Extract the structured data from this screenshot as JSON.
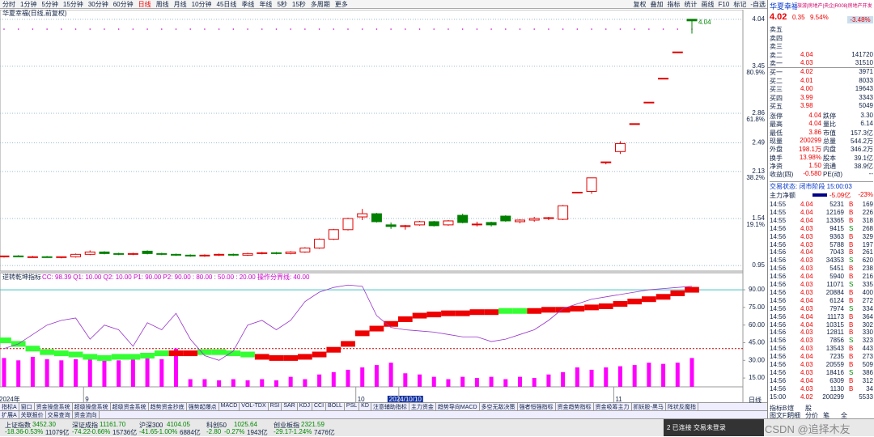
{
  "toolbar": {
    "periods": [
      "分时",
      "1分钟",
      "5分钟",
      "15分钟",
      "30分钟",
      "60分钟",
      "日线",
      "周线",
      "月线",
      "10分钟",
      "45日线",
      "季线",
      "年线",
      "5秒",
      "15秒",
      "多周期",
      "更多"
    ],
    "active_period": "日线",
    "tools": [
      "复权",
      "叠加",
      "指标",
      "统计",
      "画线",
      "F10",
      "标记",
      "-自选"
    ]
  },
  "chart_data": [
    {
      "type": "candlestick",
      "title": "华夏幸福(日线,前复权)",
      "ylim": [
        0.88,
        4.16
      ],
      "yticks": [
        4.04,
        3.45,
        2.86,
        2.49,
        2.13,
        1.54,
        0.95
      ],
      "ratio_ticks": [
        {
          "value": 3.45,
          "label": "80.9%"
        },
        {
          "value": 2.86,
          "label": "61.8%"
        },
        {
          "value": 2.13,
          "label": "38.2%"
        },
        {
          "value": 1.54,
          "label": "19.1%"
        }
      ],
      "high_label": 4.04,
      "up_color": "#e00000",
      "down_color": "#008000",
      "categories": [
        "2024年",
        null,
        null,
        null,
        null,
        null,
        "9",
        null,
        null,
        null,
        null,
        null,
        null,
        null,
        null,
        null,
        null,
        null,
        null,
        null,
        null,
        null,
        null,
        null,
        null,
        "10",
        null,
        null,
        "2024/10/10",
        null,
        null,
        null,
        null,
        null,
        null,
        null,
        null,
        null,
        null,
        null,
        null,
        null,
        null,
        "11",
        null,
        null,
        null,
        null,
        null
      ],
      "candles": [
        [
          1.06,
          1.07,
          1.05,
          1.07
        ],
        [
          1.07,
          1.08,
          1.06,
          1.06
        ],
        [
          1.06,
          1.07,
          1.05,
          1.06
        ],
        [
          1.06,
          1.07,
          1.05,
          1.05
        ],
        [
          1.05,
          1.06,
          1.04,
          1.06
        ],
        [
          1.06,
          1.1,
          1.05,
          1.09
        ],
        [
          1.09,
          1.14,
          1.08,
          1.12
        ],
        [
          1.12,
          1.13,
          1.09,
          1.1
        ],
        [
          1.1,
          1.11,
          1.08,
          1.09
        ],
        [
          1.09,
          1.11,
          1.08,
          1.1
        ],
        [
          1.13,
          1.14,
          1.09,
          1.1
        ],
        [
          1.1,
          1.11,
          1.08,
          1.09
        ],
        [
          1.09,
          1.1,
          1.07,
          1.08
        ],
        [
          1.08,
          1.09,
          1.06,
          1.07
        ],
        [
          1.07,
          1.09,
          1.06,
          1.08
        ],
        [
          1.08,
          1.1,
          1.07,
          1.09
        ],
        [
          1.09,
          1.1,
          1.07,
          1.08
        ],
        [
          1.08,
          1.11,
          1.07,
          1.1
        ],
        [
          1.1,
          1.12,
          1.09,
          1.11
        ],
        [
          1.11,
          1.12,
          1.09,
          1.1
        ],
        [
          1.1,
          1.13,
          1.09,
          1.12
        ],
        [
          1.12,
          1.18,
          1.11,
          1.17
        ],
        [
          1.17,
          1.29,
          1.16,
          1.28
        ],
        [
          1.28,
          1.41,
          1.27,
          1.4
        ],
        [
          1.4,
          1.55,
          1.39,
          1.54
        ],
        [
          1.56,
          1.66,
          1.52,
          1.6
        ],
        [
          1.6,
          1.61,
          1.49,
          1.5
        ],
        [
          1.46,
          1.49,
          1.41,
          1.44
        ],
        [
          1.44,
          1.46,
          1.4,
          1.45
        ],
        [
          1.46,
          1.51,
          1.45,
          1.5
        ],
        [
          1.5,
          1.51,
          1.44,
          1.45
        ],
        [
          1.46,
          1.52,
          1.45,
          1.51
        ],
        [
          1.58,
          1.6,
          1.48,
          1.49
        ],
        [
          1.46,
          1.5,
          1.44,
          1.47
        ],
        [
          1.49,
          1.5,
          1.44,
          1.46
        ],
        [
          1.57,
          1.58,
          1.5,
          1.51
        ],
        [
          1.5,
          1.53,
          1.48,
          1.52
        ],
        [
          1.52,
          1.56,
          1.5,
          1.54
        ],
        [
          1.54,
          1.56,
          1.52,
          1.55
        ],
        [
          1.53,
          1.71,
          1.52,
          1.7
        ],
        [
          1.87,
          1.87,
          1.87,
          1.87
        ],
        [
          1.88,
          2.05,
          1.85,
          2.05
        ],
        [
          2.25,
          2.25,
          2.22,
          2.25
        ],
        [
          2.38,
          2.51,
          2.35,
          2.48
        ],
        [
          2.73,
          2.73,
          2.72,
          2.73
        ],
        [
          3.0,
          3.0,
          3.0,
          3.0
        ],
        [
          3.3,
          3.3,
          3.3,
          3.3
        ],
        [
          3.63,
          3.63,
          3.63,
          3.63
        ],
        [
          4.04,
          4.04,
          3.86,
          4.02
        ]
      ]
    },
    {
      "type": "indicator",
      "title": "逆转乾坤指标",
      "params": "CC: 98.39  Q1: 10.00  Q2: 10.00  P1: 90.00  P2: 90.00  : 80.00  : 50.00  : 20.00  操作分界线: 40.00",
      "ylim": [
        7.5,
        104.5
      ],
      "yticks": [
        {
          "value": 90,
          "label": "90.00"
        },
        {
          "value": 75,
          "label": "75.00"
        },
        {
          "value": 60,
          "label": "60.00"
        },
        {
          "value": 45,
          "label": "45.00"
        },
        {
          "value": 30,
          "label": "30.00"
        },
        {
          "value": 15,
          "label": "15.00"
        }
      ],
      "reference_lines": [
        {
          "value": 90,
          "color": "#40c0c0",
          "style": "solid"
        },
        {
          "value": 40,
          "color": "#c00000",
          "style": "dashed"
        }
      ],
      "bar_color": "#ff00ff",
      "line_color": "#9933cc",
      "bars": [
        32,
        30,
        33,
        31,
        30,
        31,
        32,
        33,
        30,
        31,
        32,
        31,
        40,
        14,
        14,
        13,
        14,
        13,
        14,
        13,
        16,
        14,
        18,
        20,
        22,
        24,
        26,
        28,
        19,
        18,
        16,
        14,
        16,
        15,
        16,
        14,
        16,
        15,
        18,
        20,
        24,
        22,
        24,
        25,
        26,
        28,
        27,
        28,
        32
      ],
      "band": [
        47,
        44,
        40,
        37,
        36,
        35,
        33,
        32,
        33,
        33,
        34,
        36,
        36,
        36,
        37,
        37,
        36,
        35,
        33,
        32,
        32,
        33,
        35,
        39,
        44,
        53,
        57,
        61,
        65,
        68,
        69,
        70,
        70,
        71,
        71,
        72,
        72,
        72,
        73,
        73,
        74,
        75,
        76,
        78,
        80,
        82,
        84,
        87,
        90
      ],
      "band_colors": [
        "#33ff33",
        "#33ff33",
        "#33ff33",
        "#33ff33",
        "#33ff33",
        "#33ff33",
        "#33ff33",
        "#33ff33",
        "#33ff33",
        "#33ff33",
        "#33ff33",
        "#33ff33",
        "#ee0000",
        "#ee0000",
        "#33ff33",
        "#33ff33",
        "#33ff33",
        "#33ff33",
        "#ee0000",
        "#ee0000",
        "#ee0000",
        "#ee0000",
        "#ee0000",
        "#ee0000",
        "#ee0000",
        "#ee0000",
        "#ee0000",
        "#ee0000",
        "#ee0000",
        "#ee0000",
        "#ee0000",
        "#ee0000",
        "#ee0000",
        "#ee0000",
        "#ee0000",
        "#33ff33",
        "#33ff33",
        "#ee0000",
        "#ee0000",
        "#ee0000",
        "#ee0000",
        "#ee0000",
        "#ee0000",
        "#ee0000",
        "#ee0000",
        "#ee0000",
        "#ee0000",
        "#ee0000",
        "#ee0000"
      ],
      "line": [
        40,
        44,
        52,
        60,
        64,
        66,
        48,
        60,
        56,
        42,
        62,
        56,
        70,
        48,
        34,
        30,
        38,
        60,
        64,
        56,
        64,
        80,
        88,
        92,
        94,
        93,
        68,
        58,
        56,
        55,
        54,
        52,
        50,
        50,
        46,
        48,
        52,
        56,
        64,
        74,
        78,
        82,
        84,
        86,
        88,
        90,
        91,
        92,
        93
      ]
    }
  ],
  "tabs": {
    "row1": [
      "指标A",
      "窗口",
      "资金操盘系统",
      "超级操盘系统",
      "超级资金系统",
      "趋势资金抄底",
      "强势起爆点",
      "MACD",
      "VOL-TDX",
      "RSI",
      "SAR",
      "KDJ",
      "CCI",
      "BOLL",
      "PSL",
      "KD",
      "注意辅助指标",
      "主力资金",
      "趋势导向MACD",
      "多空无敌决策",
      "强者恒强指标",
      "资金趋势指标",
      "资金吸筹主力",
      "抓妖股-黑马",
      "阵状反魔指"
    ],
    "row2": [
      "扩展A",
      "关联报价",
      "交易查询",
      "资金流向"
    ],
    "period_label": "日线",
    "right1": [
      "指标B",
      "煊",
      "股"
    ],
    "right2": [
      "图文F10",
      "明细",
      "分价",
      "笔",
      "全"
    ]
  },
  "quote": {
    "name": "华夏幸福",
    "tags": "旅游|房地产|央企|R008|房地产开发",
    "price": "4.02",
    "change": "0.35",
    "pct": "9.54%",
    "ratio": "-3.48%",
    "order_book": [
      [
        "卖五"
      ],
      [
        "卖四"
      ],
      [
        "卖三"
      ],
      [
        "卖二",
        "4.04",
        "141720"
      ],
      [
        "卖一",
        "4.03",
        "31510"
      ],
      [
        "买一",
        "4.02",
        "3971"
      ],
      [
        "买二",
        "4.01",
        "8033"
      ],
      [
        "买三",
        "4.00",
        "19643"
      ],
      [
        "买四",
        "3.99",
        "3343"
      ],
      [
        "买五",
        "3.98",
        "5049"
      ]
    ],
    "stats": [
      [
        "涨停",
        "4.04",
        "跌停",
        "3.30"
      ],
      [
        "最高",
        "4.04",
        "量比",
        "6.14"
      ],
      [
        "最低",
        "3.86",
        "市值",
        "157.3亿"
      ],
      [
        "现量",
        "200299",
        "总量",
        "544.2万"
      ],
      [
        "外盘",
        "198.1万",
        "内盘",
        "346.2万"
      ],
      [
        "换手",
        "13.98%",
        "股本",
        "39.1亿"
      ],
      [
        "净资",
        "1.50",
        "流通",
        "38.9亿"
      ],
      [
        "收益(四)",
        "-0.580",
        "PE(动)",
        "--"
      ]
    ],
    "status": "交易状态: 闭市阶段 15:00:03",
    "main_flow": [
      "主力净额",
      "-5.09亿",
      "-23%"
    ],
    "ticks": [
      [
        "14:55",
        "4.04",
        "5231",
        "B",
        "169"
      ],
      [
        "14:55",
        "4.04",
        "12169",
        "B",
        "226"
      ],
      [
        "14:55",
        "4.04",
        "13365",
        "B",
        "318"
      ],
      [
        "14:56",
        "4.03",
        "9415",
        "S",
        "268"
      ],
      [
        "14:56",
        "4.03",
        "9363",
        "B",
        "329"
      ],
      [
        "14:56",
        "4.03",
        "5788",
        "B",
        "197"
      ],
      [
        "14:56",
        "4.04",
        "7043",
        "B",
        "261"
      ],
      [
        "14:56",
        "4.03",
        "34353",
        "S",
        "620"
      ],
      [
        "14:56",
        "4.03",
        "5451",
        "B",
        "238"
      ],
      [
        "14:56",
        "4.04",
        "5940",
        "B",
        "216"
      ],
      [
        "14:56",
        "4.03",
        "11071",
        "S",
        "335"
      ],
      [
        "14:56",
        "4.03",
        "20884",
        "B",
        "400"
      ],
      [
        "14:56",
        "4.04",
        "6124",
        "B",
        "272"
      ],
      [
        "14:56",
        "4.03",
        "7974",
        "S",
        "334"
      ],
      [
        "14:56",
        "4.04",
        "11173",
        "B",
        "364"
      ],
      [
        "14:56",
        "4.04",
        "10315",
        "B",
        "302"
      ],
      [
        "14:56",
        "4.03",
        "12811",
        "B",
        "330"
      ],
      [
        "14:56",
        "4.03",
        "7856",
        "S",
        "323"
      ],
      [
        "14:56",
        "4.03",
        "13543",
        "B",
        "443"
      ],
      [
        "14:56",
        "4.04",
        "7235",
        "B",
        "273"
      ],
      [
        "14:56",
        "4.03",
        "20559",
        "B",
        "509"
      ],
      [
        "14:56",
        "4.03",
        "18416",
        "S",
        "386"
      ],
      [
        "14:56",
        "4.04",
        "6309",
        "B",
        "312"
      ],
      [
        "14:56",
        "4.03",
        "1130",
        "B",
        "34"
      ],
      [
        "15:00",
        "4.02",
        "200299",
        "5533"
      ]
    ]
  },
  "status_bar": {
    "indices": [
      [
        "上证指数",
        "3452.30",
        "-18.36",
        "-0.53%",
        "11079亿"
      ],
      [
        "深证成指",
        "11161.70",
        "-74.22",
        "-0.66%",
        "15736亿"
      ],
      [
        "沪深300",
        "4104.05",
        "-41.65",
        "-1.00%",
        "6884亿"
      ],
      [
        "科创50",
        "1025.64",
        "-2.80",
        "-0.27%",
        "1943亿"
      ],
      [
        "创业板指",
        "2321.59",
        "-29.17",
        "-1.24%",
        "7476亿"
      ]
    ],
    "connection": "2 已连接 交易未登录",
    "watermark": "CSDN @追择木友"
  }
}
